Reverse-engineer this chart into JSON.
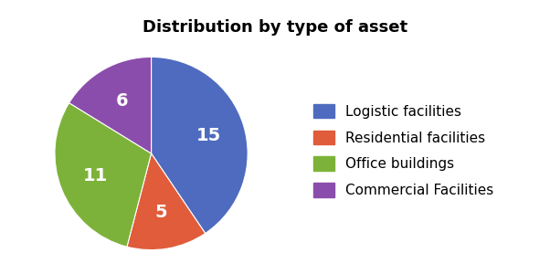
{
  "title": "Distribution by type of asset",
  "slices": [
    15,
    5,
    11,
    6
  ],
  "autopct_labels": [
    "15",
    "5",
    "11",
    "6"
  ],
  "colors": [
    "#4f6bbf",
    "#e05c3a",
    "#7db23a",
    "#8b4dab"
  ],
  "legend_labels": [
    "Logistic facilities",
    "Residential facilities",
    "Office buildings",
    "Commercial Facilities"
  ],
  "startangle": 90,
  "title_fontsize": 13,
  "label_fontsize": 14,
  "text_color": "#FFFFFF",
  "background_color": "#FFFFFF",
  "legend_fontsize": 11
}
